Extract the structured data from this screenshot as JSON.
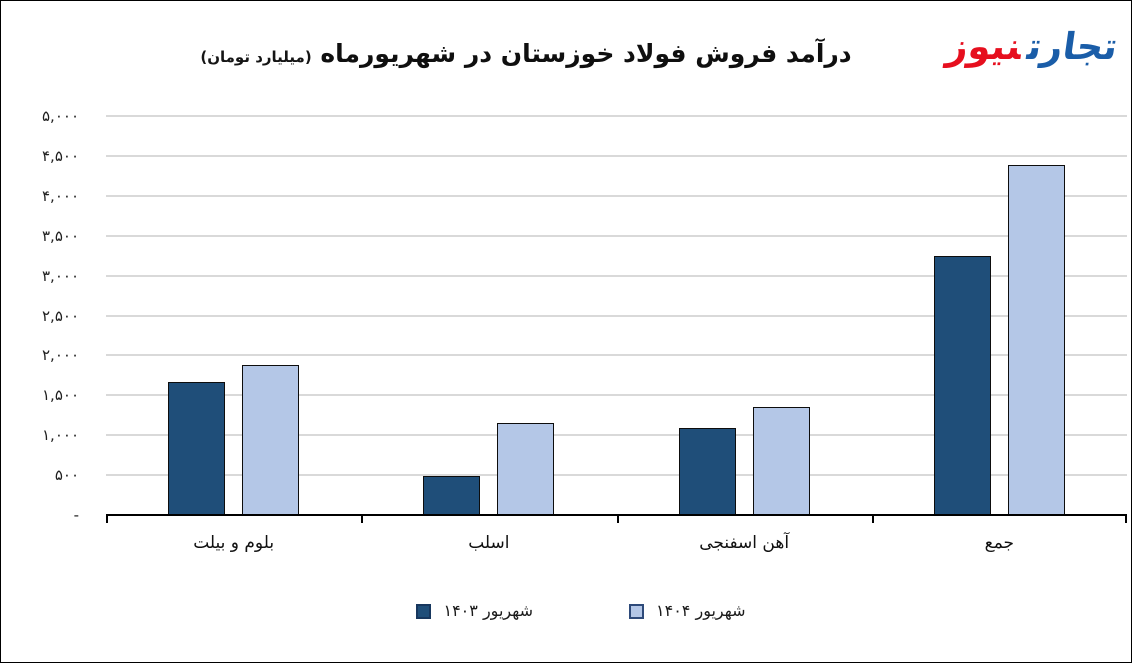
{
  "title": {
    "main": "درآمد فروش فولاد خوزستان در شهریورماه",
    "unit": "(میلیارد تومان)"
  },
  "logo": {
    "part1": "تجارت",
    "part2": "نیوز",
    "part1_color": "#1A5DA8",
    "part2_color": "#E60F1E"
  },
  "chart_data": {
    "type": "bar",
    "title": "درآمد فروش فولاد خوزستان در شهریورماه (میلیارد تومان)",
    "categories": [
      "بلوم و بیلت",
      "اسلب",
      "آهن اسفنجی",
      "جمع"
    ],
    "series": [
      {
        "name": "شهریور ۱۴۰۳",
        "color": "#1F4E79",
        "bar_border_color": "#0d0d0d",
        "swatch_border_color": "#17375E",
        "values": [
          1665,
          490,
          1095,
          3250
        ]
      },
      {
        "name": "شهریور ۱۴۰۴",
        "color": "#B4C7E7",
        "bar_border_color": "#0d0d0d",
        "swatch_border_color": "#2E4A7A",
        "values": [
          1880,
          1150,
          1350,
          4380
        ]
      }
    ],
    "ylim": [
      0,
      5000
    ],
    "y_tick_step": 500,
    "y_tick_labels_top_to_bottom": [
      "۵,۰۰۰",
      "۴,۵۰۰",
      "۴,۰۰۰",
      "۳,۵۰۰",
      "۳,۰۰۰",
      "۲,۵۰۰",
      "۲,۰۰۰",
      "۱,۵۰۰",
      "۱,۰۰۰",
      "۵۰۰",
      "-"
    ],
    "grid": true,
    "gridline_color": "#D9D9D9",
    "axis_line_color": "#000000",
    "legend_position": "bottom",
    "direction": "rtl"
  }
}
